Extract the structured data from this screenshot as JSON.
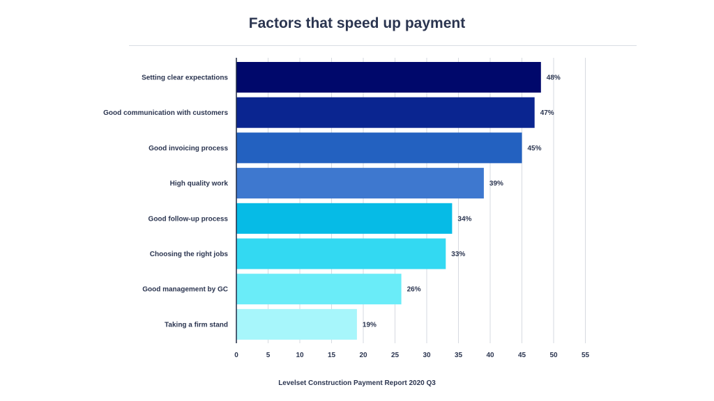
{
  "title": "Factors that speed up payment",
  "footer": "Levelset Construction Payment Report 2020 Q3",
  "chart_data": {
    "type": "bar",
    "orientation": "horizontal",
    "title": "Factors that speed up payment",
    "categories": [
      "Setting clear expectations",
      "Good communication with customers",
      "Good invoicing process",
      "High quality work",
      "Good follow-up process",
      "Choosing the right jobs",
      "Good management by GC",
      "Taking a firm stand"
    ],
    "values": [
      48,
      47,
      45,
      39,
      34,
      33,
      26,
      19
    ],
    "value_labels": [
      "48%",
      "47%",
      "45%",
      "39%",
      "34%",
      "33%",
      "26%",
      "19%"
    ],
    "xlim": [
      0,
      55
    ],
    "xticks": [
      "0",
      "5",
      "10",
      "15",
      "20",
      "25",
      "30",
      "35",
      "40",
      "45",
      "50",
      "55"
    ],
    "grid": true,
    "colors": [
      "#00086b",
      "#0a2590",
      "#2361c0",
      "#3e78cf",
      "#06bbe6",
      "#33d9f2",
      "#6aecf8",
      "#a7f6fb"
    ]
  }
}
